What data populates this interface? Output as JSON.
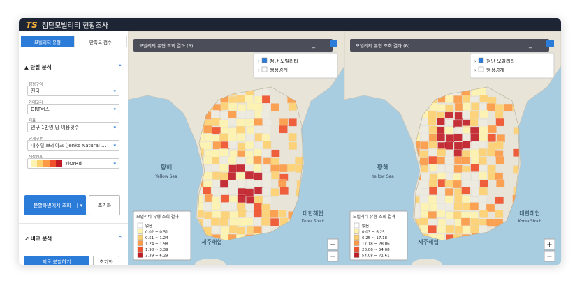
{
  "header": {
    "logo": "TS",
    "title": "첨단모빌리티 현황조사"
  },
  "sidebar": {
    "tabs": [
      "모빌리티 유형",
      "만족도 점수"
    ],
    "single_analysis": {
      "title": "단일 분석",
      "fields": [
        {
          "label": "행정구역",
          "value": "전국"
        },
        {
          "label": "카테고리",
          "value": "DRT버스"
        },
        {
          "label": "지표",
          "value": "인구 1만명 당 이용횟수"
        },
        {
          "label": "단계구분",
          "value": "내추럴 브레이크 (Jenks Natural ..."
        },
        {
          "label": "색상램프",
          "value": "YlOrRd"
        }
      ],
      "buttons": [
        "분할화면에서 조회",
        "초기화"
      ]
    },
    "compare_analysis": {
      "title": "비교 분석",
      "buttons": [
        "지도 분할하기",
        "초기화"
      ]
    }
  },
  "maps": [
    {
      "panel_title": "모빌리티 유형 조회 결과 (B)",
      "layers": [
        "첨단 모빌리티",
        "행정경계"
      ],
      "sea_labels": [
        "황해",
        "Yellow Sea",
        "대한해협",
        "Korea Strait",
        "제주해협"
      ],
      "legend": {
        "title": "모빌리티 유형 조회 결과",
        "items": [
          "없음",
          "0.02 ~ 0.51",
          "0.51 ~ 1.24",
          "1.24 ~ 1.98",
          "1.98 ~ 3.39",
          "3.39 ~ 6.29"
        ],
        "colors": [
          "#ffffff",
          "#fef3b0",
          "#fed170",
          "#fd9a45",
          "#f0502b",
          "#c11b26"
        ]
      }
    },
    {
      "panel_title": "모빌리티 유형 조회 결과 (B)",
      "layers": [
        "첨단 모빌리티",
        "행정경계"
      ],
      "sea_labels": [
        "황해",
        "Yellow Sea",
        "대한해협",
        "Korea Strait",
        "제주해협"
      ],
      "legend": {
        "title": "모빌리티 유형 조회 결과",
        "items": [
          "없음",
          "0.03 ~ 6.25",
          "6.25 ~ 17.18",
          "17.18 ~ 28.06",
          "28.06 ~ 54.08",
          "54.08 ~ 71.61"
        ],
        "colors": [
          "#ffffff",
          "#fef3b0",
          "#fed170",
          "#fd9a45",
          "#f0502b",
          "#c11b26"
        ]
      }
    }
  ]
}
